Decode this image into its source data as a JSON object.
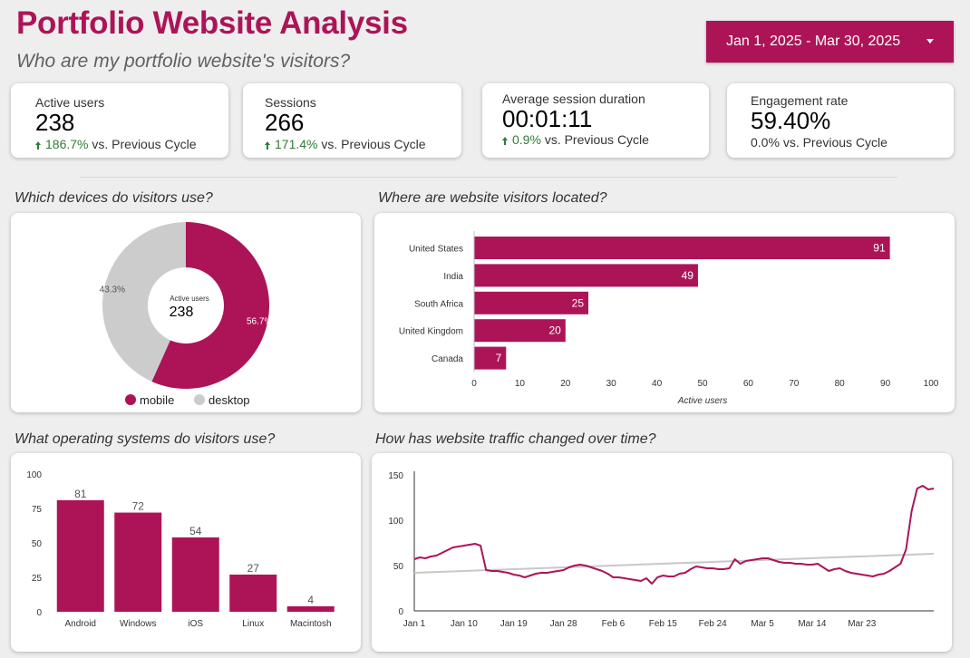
{
  "header": {
    "title": "Portfolio Website Analysis",
    "subtitle": "Who are my portfolio website's visitors?",
    "date_range": "Jan 1, 2025 - Mar 30, 2025"
  },
  "colors": {
    "accent": "#ad1457",
    "secondary": "#cccccc",
    "positive": "#2e7d32",
    "trend": "#c8c8c8"
  },
  "kpis": [
    {
      "label": "Active users",
      "value": "238",
      "delta": "186.7%",
      "suffix": "vs. Previous Cycle",
      "trend": "up"
    },
    {
      "label": "Sessions",
      "value": "266",
      "delta": "171.4%",
      "suffix": "vs. Previous Cycle",
      "trend": "up"
    },
    {
      "label": "Average session duration",
      "value": "00:01:11",
      "delta": "0.9%",
      "suffix": "vs. Previous Cycle",
      "trend": "up"
    },
    {
      "label": "Engagement rate",
      "value": "59.40%",
      "delta": "0.0%",
      "suffix": "vs. Previous Cycle",
      "trend": "flat"
    }
  ],
  "sections": {
    "devices": "Which devices do visitors use?",
    "locations": "Where are website visitors located?",
    "os": "What operating systems do visitors use?",
    "traffic": "How has website traffic changed over time?"
  },
  "chart_data": [
    {
      "type": "pie",
      "title": "Which devices do visitors use?",
      "center_label": "Active users",
      "center_value": "238",
      "slices": [
        {
          "name": "mobile",
          "percent": 56.7,
          "label": "56.7%",
          "color": "#ad1457"
        },
        {
          "name": "desktop",
          "percent": 43.3,
          "label": "43.3%",
          "color": "#cccccc"
        }
      ],
      "legend": "bottom"
    },
    {
      "type": "bar",
      "orientation": "horizontal",
      "title": "Where are website visitors located?",
      "categories": [
        "United States",
        "India",
        "South Africa",
        "United Kingdom",
        "Canada"
      ],
      "values": [
        91,
        49,
        25,
        20,
        7
      ],
      "xlabel": "Active users",
      "xlim": [
        0,
        100
      ],
      "xticks": [
        0,
        10,
        20,
        30,
        40,
        50,
        60,
        70,
        80,
        90,
        100
      ]
    },
    {
      "type": "bar",
      "title": "What operating systems do visitors use?",
      "categories": [
        "Android",
        "Windows",
        "iOS",
        "Linux",
        "Macintosh"
      ],
      "values": [
        81,
        72,
        54,
        27,
        4
      ],
      "ylim": [
        0,
        100
      ],
      "yticks": [
        0,
        25,
        50,
        75,
        100
      ]
    },
    {
      "type": "line",
      "title": "How has website traffic changed over time?",
      "ylim": [
        0,
        150
      ],
      "yticks": [
        0,
        50,
        100,
        150
      ],
      "xticks": [
        {
          "day": 0,
          "label": "Jan 1"
        },
        {
          "day": 9,
          "label": "Jan 10"
        },
        {
          "day": 18,
          "label": "Jan 19"
        },
        {
          "day": 27,
          "label": "Jan 28"
        },
        {
          "day": 36,
          "label": "Feb 6"
        },
        {
          "day": 45,
          "label": "Feb 15"
        },
        {
          "day": 54,
          "label": "Feb 24"
        },
        {
          "day": 63,
          "label": "Mar 5"
        },
        {
          "day": 72,
          "label": "Mar 14"
        },
        {
          "day": 81,
          "label": "Mar 23"
        }
      ],
      "series": [
        {
          "name": "traffic",
          "x_start_day": 0,
          "values": [
            57,
            59,
            58,
            60,
            61,
            64,
            67,
            70,
            71,
            72,
            73,
            74,
            72,
            45,
            44,
            44,
            43,
            42,
            40,
            39,
            37,
            39,
            41,
            42,
            42,
            43,
            44,
            45,
            48,
            50,
            51,
            50,
            48,
            46,
            44,
            41,
            37,
            37,
            36,
            35,
            34,
            33,
            36,
            30,
            37,
            39,
            38,
            38,
            41,
            42,
            46,
            49,
            48,
            47,
            47,
            46,
            46,
            47,
            57,
            52,
            55,
            56,
            57,
            58,
            58,
            56,
            54,
            53,
            53,
            52,
            52,
            51,
            51,
            52,
            48,
            44,
            46,
            47,
            44,
            42,
            41,
            40,
            39,
            38,
            40,
            41,
            44,
            48,
            52,
            68,
            110,
            135,
            138,
            134,
            135
          ]
        },
        {
          "name": "trend",
          "x_start_day": 0,
          "values": [
            42,
            63
          ],
          "kind": "linear"
        }
      ]
    }
  ]
}
